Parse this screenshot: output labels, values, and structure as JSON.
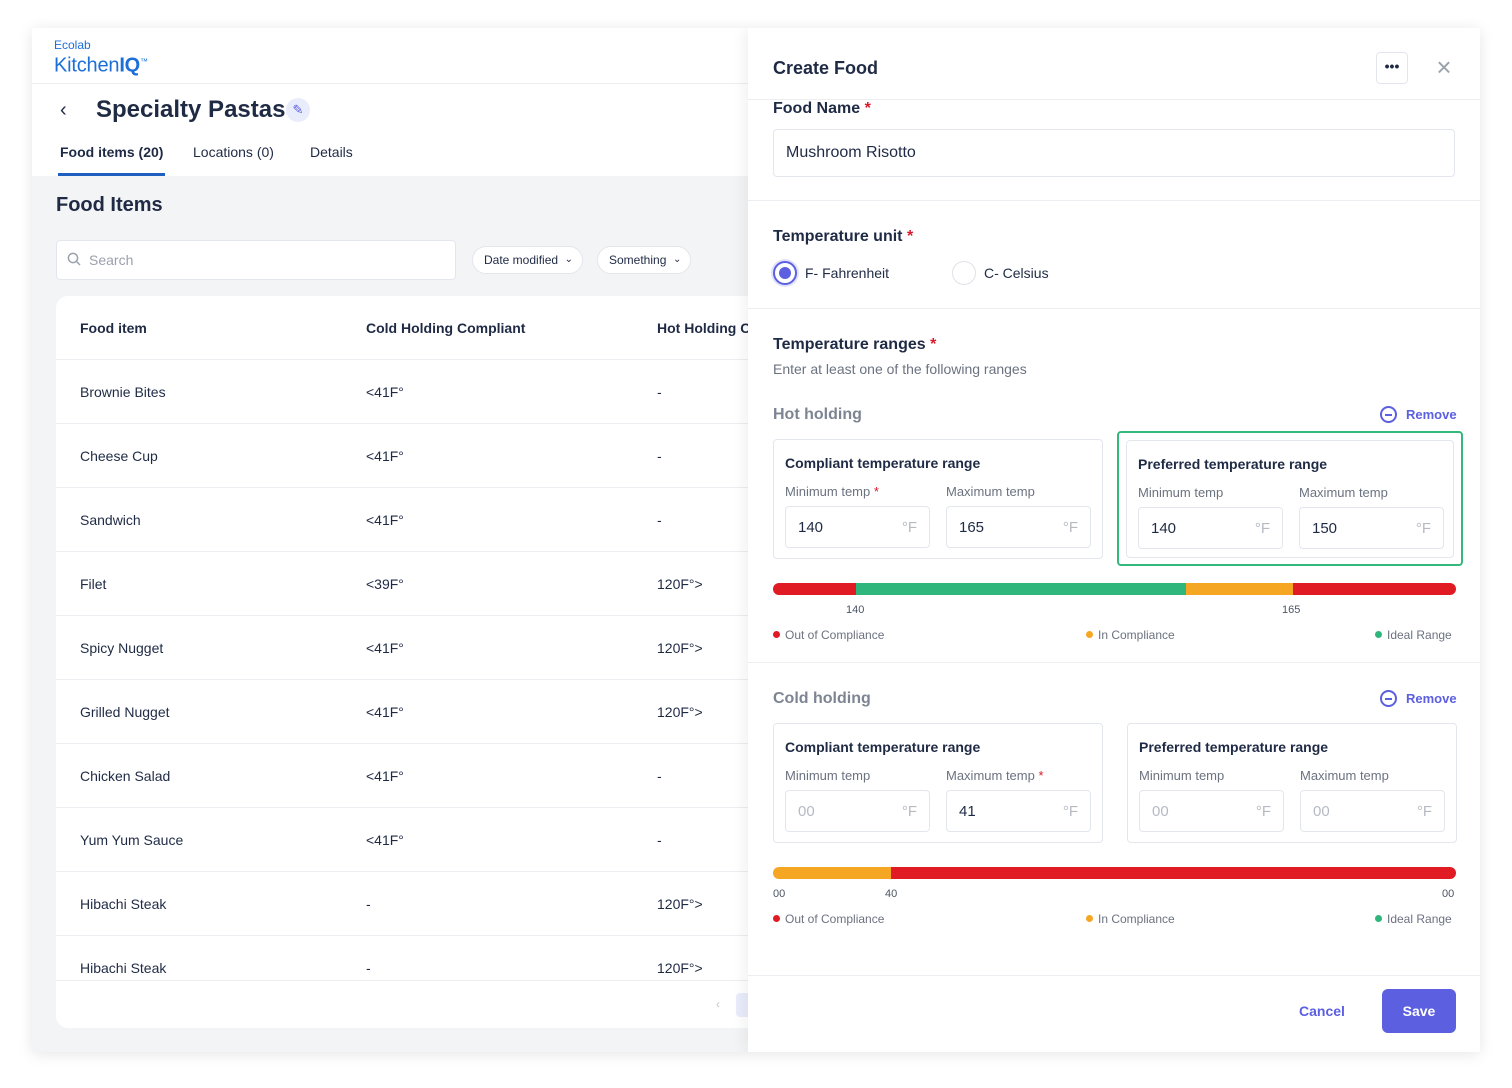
{
  "brand": {
    "line1": "Ecolab",
    "line2_a": "Kitchen",
    "line2_b": "IQ",
    "tm": "™"
  },
  "page": {
    "title": "Specialty Pastas"
  },
  "tabs": [
    {
      "label": "Food items (20)",
      "active": true
    },
    {
      "label": "Locations (0)",
      "active": false
    },
    {
      "label": "Details",
      "active": false
    }
  ],
  "list": {
    "title": "Food Items",
    "search_placeholder": "Search",
    "filters": [
      "Date modified",
      "Something"
    ],
    "columns": [
      "Food item",
      "Cold Holding Compliant",
      "Hot Holding Co"
    ],
    "rows": [
      {
        "name": "Brownie Bites",
        "cold": "<41F°",
        "hot": "-"
      },
      {
        "name": "Cheese Cup",
        "cold": "<41F°",
        "hot": "-"
      },
      {
        "name": "Sandwich",
        "cold": "<41F°",
        "hot": "-"
      },
      {
        "name": "Filet",
        "cold": "<39F°",
        "hot": "120F°>"
      },
      {
        "name": "Spicy Nugget",
        "cold": "<41F°",
        "hot": "120F°>"
      },
      {
        "name": "Grilled Nugget",
        "cold": "<41F°",
        "hot": "120F°>"
      },
      {
        "name": "Chicken Salad",
        "cold": "<41F°",
        "hot": "-"
      },
      {
        "name": "Yum Yum Sauce",
        "cold": "<41F°",
        "hot": "-"
      },
      {
        "name": "Hibachi Steak",
        "cold": "-",
        "hot": "120F°>"
      },
      {
        "name": "Hibachi Steak",
        "cold": "-",
        "hot": "120F°>"
      }
    ],
    "pagination_prev": "‹"
  },
  "drawer": {
    "title": "Create Food",
    "more_label": "•••",
    "close_label": "×",
    "food_name_label": "Food Name",
    "food_name_value": "Mushroom Risotto",
    "required_mark": "*",
    "temp_unit_label": "Temperature unit",
    "unit_options": [
      {
        "label": "F- Fahrenheit",
        "selected": true
      },
      {
        "label": "C- Celsius",
        "selected": false
      }
    ],
    "ranges_label": "Temperature ranges",
    "ranges_helper": "Enter at least one of the following ranges",
    "remove_label": "Remove",
    "compliant_label": "Compliant temperature range",
    "preferred_label": "Preferred temperature range",
    "min_label": "Minimum temp",
    "max_label": "Maximum temp",
    "unit_symbol": "°F",
    "legend": [
      {
        "label": "Out of Compliance",
        "color": "#e01b24"
      },
      {
        "label": "In Compliance",
        "color": "#f5a623"
      },
      {
        "label": "Ideal Range",
        "color": "#2eb67d"
      }
    ],
    "hot": {
      "title": "Hot holding",
      "compliant_min": "140",
      "compliant_max": "165",
      "preferred_min": "140",
      "preferred_max": "150",
      "bar_ticks": [
        "140",
        "165"
      ]
    },
    "cold": {
      "title": "Cold holding",
      "compliant_min_placeholder": "00",
      "compliant_max": "41",
      "preferred_min_placeholder": "00",
      "preferred_max_placeholder": "00",
      "bar_ticks": [
        "00",
        "40",
        "00"
      ]
    },
    "cancel_label": "Cancel",
    "save_label": "Save"
  }
}
